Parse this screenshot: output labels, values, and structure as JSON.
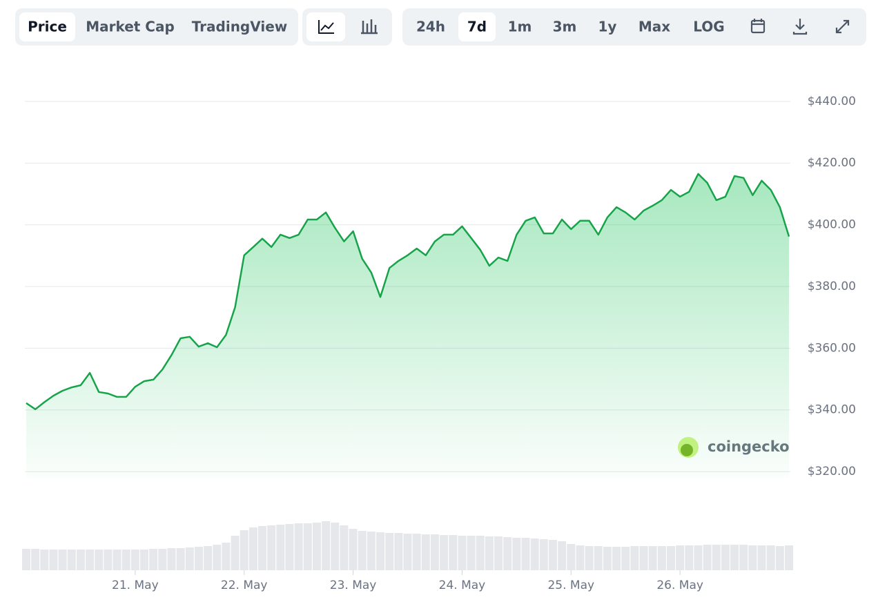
{
  "toolbar": {
    "views": [
      "Price",
      "Market Cap",
      "TradingView"
    ],
    "active_view": 0,
    "ranges": [
      "24h",
      "7d",
      "1m",
      "3m",
      "1y",
      "Max",
      "LOG"
    ],
    "active_range": 1
  },
  "watermark": "coingecko",
  "chart_data": {
    "type": "line",
    "x": [
      0,
      2,
      4,
      6,
      8,
      10,
      12,
      14,
      16,
      18,
      20,
      22,
      24,
      26,
      28,
      30,
      32,
      34,
      36,
      38,
      40,
      42,
      44,
      46,
      48,
      50,
      52,
      54,
      56,
      58,
      60,
      62,
      64,
      66,
      68,
      70,
      72,
      74,
      76,
      78,
      80,
      82,
      84,
      86,
      88,
      90,
      92,
      94,
      96,
      98,
      100,
      102,
      104,
      106,
      108,
      110,
      112,
      114,
      116,
      118,
      120,
      122,
      124,
      126,
      128,
      130,
      132,
      134,
      136,
      138,
      140,
      142,
      144,
      146,
      148,
      150,
      152,
      154,
      156,
      158,
      160,
      162,
      164,
      166,
      168
    ],
    "series": [
      {
        "color": "#16a34a",
        "values": [
          342.2,
          340.2,
          342.5,
          344.6,
          346.2,
          347.3,
          348,
          352,
          345.8,
          345.3,
          344.2,
          344.2,
          347.5,
          349.3,
          349.8,
          353.1,
          357.8,
          363.2,
          363.7,
          360.5,
          361.6,
          360.3,
          364.3,
          373.3,
          390.1,
          392.8,
          395.5,
          392.8,
          396.8,
          395.7,
          396.8,
          401.7,
          401.7,
          404,
          399,
          394.6,
          397.9,
          389,
          384.5,
          376.6,
          386,
          388.3,
          390.1,
          392.3,
          390.1,
          394.6,
          396.8,
          396.8,
          399.5,
          395.7,
          391.9,
          386.7,
          389.4,
          388.3,
          396.8,
          401.3,
          402.4,
          397.2,
          397.2,
          401.7,
          398.6,
          401.3,
          401.3,
          396.8,
          402.4,
          405.7,
          404,
          401.7,
          404.6,
          406.2,
          408,
          411.3,
          409.1,
          410.7,
          416.5,
          413.6,
          408,
          409.1,
          415.8,
          415.2,
          409.6,
          414.3,
          411.3,
          405.7,
          396.2
        ]
      }
    ],
    "volume": {
      "color": "#e5e7eb",
      "ylim": [
        0,
        80
      ],
      "values": [
        31,
        31,
        30,
        30,
        30,
        30,
        30,
        30,
        30,
        30,
        30,
        30,
        30,
        30,
        31,
        31,
        32,
        32,
        33,
        34,
        35,
        37,
        40,
        50,
        58,
        62,
        64,
        65,
        66,
        67,
        68,
        68,
        69,
        71,
        69,
        65,
        60,
        57,
        56,
        55,
        54,
        54,
        53,
        53,
        52,
        52,
        51,
        51,
        50,
        50,
        50,
        49,
        49,
        48,
        47,
        47,
        46,
        45,
        44,
        42,
        38,
        36,
        35,
        35,
        34,
        34,
        34,
        35,
        35,
        35,
        35,
        35,
        36,
        36,
        36,
        37,
        37,
        37,
        37,
        37,
        36,
        36,
        36,
        35,
        36
      ]
    },
    "xlim": [
      0,
      168
    ],
    "xticks": [
      {
        "value": 24,
        "label": "21. May"
      },
      {
        "value": 48,
        "label": "22. May"
      },
      {
        "value": 72,
        "label": "23. May"
      },
      {
        "value": 96,
        "label": "24. May"
      },
      {
        "value": 120,
        "label": "25. May"
      },
      {
        "value": 144,
        "label": "26. May"
      }
    ],
    "ylim": [
      318,
      444
    ],
    "yticks": [
      {
        "value": 320,
        "label": "$320.00"
      },
      {
        "value": 340,
        "label": "$340.00"
      },
      {
        "value": 360,
        "label": "$360.00"
      },
      {
        "value": 380,
        "label": "$380.00"
      },
      {
        "value": 400,
        "label": "$400.00"
      },
      {
        "value": 420,
        "label": "$420.00"
      },
      {
        "value": 440,
        "label": "$440.00"
      }
    ],
    "grid": true
  }
}
